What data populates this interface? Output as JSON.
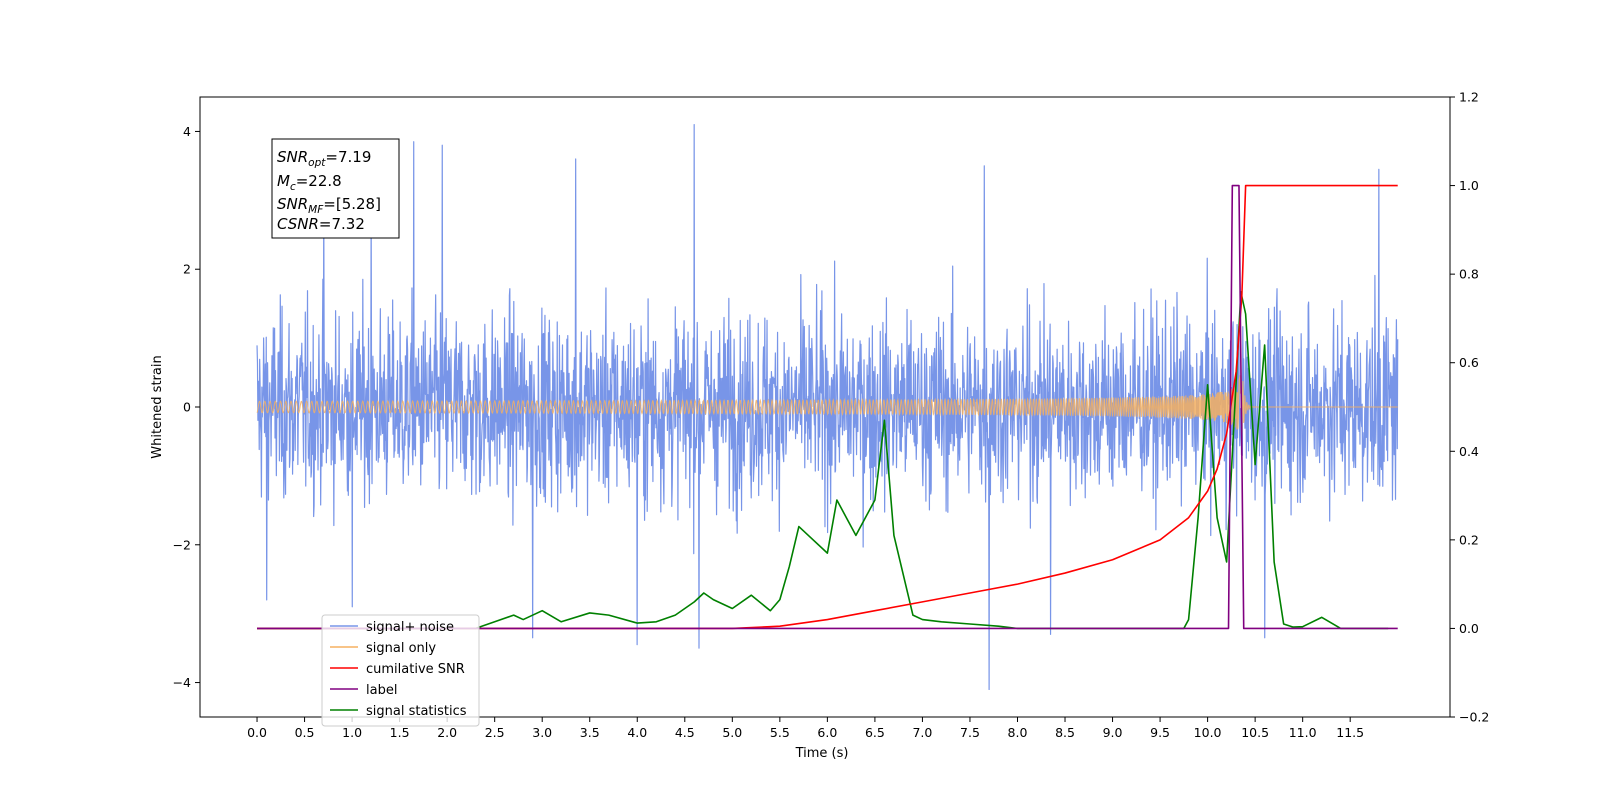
{
  "chart_data": {
    "type": "line",
    "title": "",
    "xlabel": "Time (s)",
    "ylabel": "Whitened strain",
    "y2label": "",
    "xlim": [
      -0.6,
      12.55
    ],
    "ylim": [
      -4.5,
      4.5
    ],
    "y2lim": [
      -0.2,
      1.2
    ],
    "x_ticks": [
      "0.0",
      "0.5",
      "1.0",
      "1.5",
      "2.0",
      "2.5",
      "3.0",
      "3.5",
      "4.0",
      "4.5",
      "5.0",
      "5.5",
      "6.0",
      "6.5",
      "7.0",
      "7.5",
      "8.0",
      "8.5",
      "9.0",
      "9.5",
      "10.0",
      "10.5",
      "11.0",
      "11.5"
    ],
    "y_ticks": [
      "4",
      "2",
      "0",
      "−2",
      "−4"
    ],
    "y_tick_values": [
      4,
      2,
      0,
      -2,
      -4
    ],
    "y2_ticks": [
      "1.2",
      "1.0",
      "0.8",
      "0.6",
      "0.4",
      "0.2",
      "0.0",
      "−0.2"
    ],
    "y2_tick_values": [
      1.2,
      1.0,
      0.8,
      0.6,
      0.4,
      0.2,
      0.0,
      -0.2
    ],
    "grid": false,
    "legend": {
      "placement": "lower-left"
    },
    "annotation": {
      "snr_opt": {
        "base": "SNR",
        "sub": "opt",
        "value": "=7.19"
      },
      "mc": {
        "base": "M",
        "sub": "c",
        "value": "=22.8"
      },
      "snr_mf": {
        "base": "SNR",
        "sub": "MF",
        "value": "=[5.28]"
      },
      "csnr": {
        "base": "CSNR",
        "value": "=7.32"
      }
    },
    "series": [
      {
        "name": "signal+ noise",
        "color": "#7895e8",
        "axis": "left",
        "noise_band": {
          "x_start": 0.0,
          "x_end": 12.0,
          "typical_range": [
            -1.9,
            1.9
          ],
          "extreme_max": 4.1,
          "extreme_min": -4.1
        },
        "spikes_x": [
          0.7,
          1.2,
          1.65,
          1.95,
          3.35,
          4.6,
          7.65,
          11.8
        ],
        "spikes_y": [
          3.0,
          2.9,
          3.85,
          3.8,
          3.6,
          4.1,
          3.5,
          3.45
        ],
        "dips_x": [
          0.1,
          1.0,
          2.9,
          4.0,
          4.65,
          7.7,
          8.35,
          10.6
        ],
        "dips_y": [
          -2.8,
          -2.9,
          -3.35,
          -3.45,
          -3.5,
          -4.1,
          -3.3,
          -3.35
        ]
      },
      {
        "name": "signal only",
        "color": "#f5b060",
        "axis": "left",
        "chirp": {
          "x_start": 0.0,
          "x_merger": 10.35,
          "x_end": 12.0,
          "peak_amplitude": 0.9
        }
      },
      {
        "name": "cumilative SNR",
        "color": "#ff0000",
        "axis": "right",
        "x": [
          0.0,
          5.0,
          5.5,
          6.0,
          6.5,
          7.0,
          7.5,
          8.0,
          8.5,
          9.0,
          9.5,
          9.8,
          10.0,
          10.1,
          10.2,
          10.3,
          10.36,
          10.4,
          11.0,
          11.6,
          12.0
        ],
        "values": [
          0.0,
          0.0,
          0.005,
          0.02,
          0.04,
          0.06,
          0.08,
          0.1,
          0.125,
          0.155,
          0.2,
          0.25,
          0.31,
          0.36,
          0.44,
          0.58,
          0.75,
          1.0,
          1.0,
          1.0,
          1.0
        ]
      },
      {
        "name": "label",
        "color": "#800080",
        "axis": "right",
        "x": [
          0.0,
          10.22,
          10.26,
          10.33,
          10.38,
          11.0,
          12.0
        ],
        "values": [
          0.0,
          0.0,
          1.0,
          1.0,
          0.0,
          0.0,
          0.0
        ]
      },
      {
        "name": "signal statistics",
        "color": "#008000",
        "axis": "right",
        "x": [
          0.0,
          2.3,
          2.5,
          2.7,
          2.8,
          3.0,
          3.2,
          3.5,
          3.7,
          4.0,
          4.2,
          4.4,
          4.6,
          4.7,
          4.8,
          5.0,
          5.2,
          5.4,
          5.5,
          5.6,
          5.7,
          5.8,
          6.0,
          6.1,
          6.2,
          6.3,
          6.5,
          6.6,
          6.7,
          6.9,
          7.0,
          7.2,
          7.5,
          7.8,
          8.0,
          9.75,
          9.8,
          9.9,
          10.0,
          10.1,
          10.2,
          10.35,
          10.4,
          10.5,
          10.6,
          10.7,
          10.8,
          10.9,
          11.0,
          11.2,
          11.4,
          11.9
        ],
        "values": [
          0.0,
          0.0,
          0.015,
          0.03,
          0.02,
          0.04,
          0.015,
          0.035,
          0.03,
          0.012,
          0.015,
          0.03,
          0.06,
          0.08,
          0.065,
          0.045,
          0.075,
          0.04,
          0.065,
          0.14,
          0.23,
          0.21,
          0.17,
          0.29,
          0.25,
          0.21,
          0.29,
          0.47,
          0.21,
          0.03,
          0.02,
          0.015,
          0.01,
          0.005,
          0.0,
          0.0,
          0.02,
          0.25,
          0.55,
          0.25,
          0.15,
          0.76,
          0.71,
          0.37,
          0.64,
          0.15,
          0.01,
          0.003,
          0.004,
          0.025,
          0.0,
          0.0
        ]
      }
    ]
  }
}
